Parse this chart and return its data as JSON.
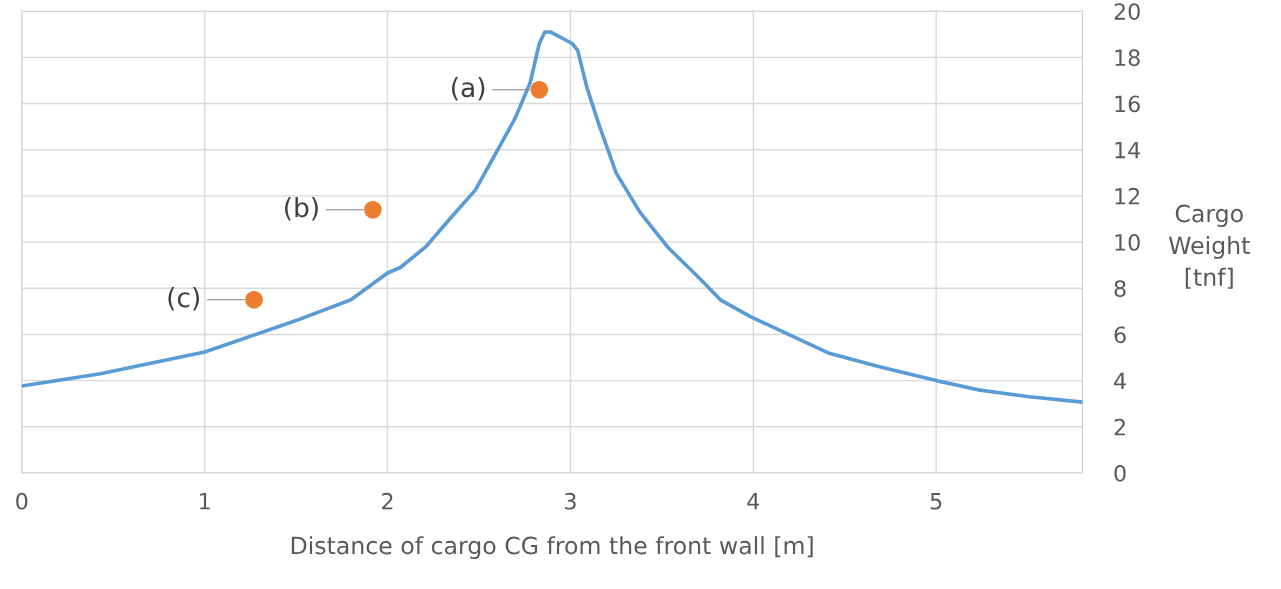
{
  "chart_data": {
    "type": "line",
    "xlabel": "Distance of cargo CG from the front wall [m]",
    "ylabel": "Cargo\nWeight\n[tnf]",
    "xlim": [
      0,
      5.8
    ],
    "xticks": [
      0,
      1,
      2,
      3,
      4,
      5
    ],
    "ylim": [
      0,
      20
    ],
    "yticks": [
      0,
      2,
      4,
      6,
      8,
      10,
      12,
      14,
      16,
      18,
      20
    ],
    "grid": true,
    "series": [
      {
        "color": "#5b9bd5",
        "marker": "none",
        "x": [
          0,
          0.43,
          1.0,
          1.5,
          1.8,
          2.0,
          2.07,
          2.21,
          2.34,
          2.48,
          2.61,
          2.7,
          2.78,
          2.83,
          2.86,
          2.89,
          3.01,
          3.04,
          3.09,
          3.16,
          3.25,
          3.38,
          3.53,
          3.71,
          3.82,
          3.99,
          4.14,
          4.41,
          4.69,
          5.0,
          5.23,
          5.51,
          5.8
        ],
        "values": [
          3.77,
          4.3,
          5.24,
          6.6,
          7.5,
          8.66,
          8.9,
          9.8,
          11.0,
          12.25,
          14.1,
          15.4,
          16.9,
          18.6,
          19.1,
          19.1,
          18.6,
          18.3,
          16.7,
          15.0,
          13.0,
          11.3,
          9.8,
          8.4,
          7.5,
          6.75,
          6.2,
          5.2,
          4.6,
          4.0,
          3.6,
          3.3,
          3.07
        ]
      },
      {
        "type": "scatter",
        "color": "#ed7d31",
        "marker": "circle",
        "x": [
          2.83,
          1.92,
          1.27
        ],
        "values": [
          16.6,
          11.4,
          7.5
        ]
      }
    ],
    "annotations": [
      {
        "text": "(a)",
        "x": 2.83,
        "y": 16.6
      },
      {
        "text": "(b)",
        "x": 1.92,
        "y": 11.4
      },
      {
        "text": "(c)",
        "x": 1.27,
        "y": 7.5
      }
    ]
  }
}
